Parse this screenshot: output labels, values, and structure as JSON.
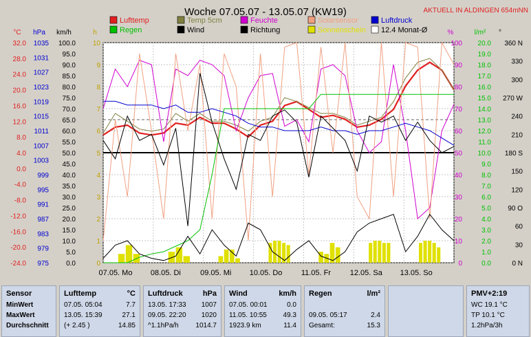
{
  "header": {
    "title": "Woche 07.05.07 - 13.05.07 (KW19)",
    "live_label": "AKTUELL IN ALDINGEN 654mNN"
  },
  "legend": [
    {
      "label": "Lufttemp",
      "color": "#e02020"
    },
    {
      "label": "Temp 5cm",
      "color": "#808040"
    },
    {
      "label": "Feuchte",
      "color": "#d000d0"
    },
    {
      "label": "Solarsensor",
      "color": "#f0a080"
    },
    {
      "label": "Luftdruck",
      "color": "#0000d0"
    },
    {
      "label": "Regen",
      "color": "#00c000"
    },
    {
      "label": "Wind",
      "color": "#000000"
    },
    {
      "label": "Richtung",
      "color": "#000000"
    },
    {
      "label": "Sonnenschein",
      "color": "#e0e000"
    },
    {
      "label": "12.4 Monat-Ø",
      "color": "#ffffff"
    }
  ],
  "axis_headers": {
    "temp": "°C",
    "press": "hPa",
    "wind": "km/h",
    "sun": "h",
    "hum": "%",
    "rain": "l/m²",
    "dir": "°"
  },
  "chart_data": {
    "type": "line",
    "days": [
      "07.05.  Mo",
      "08.05.  Di",
      "09.05.  Mi",
      "10.05.  Do",
      "11.05.  Fr",
      "12.05.  Sa",
      "13.05.  So"
    ],
    "axes": {
      "temp": {
        "ticks": [
          "32.0",
          "28.0",
          "24.0",
          "20.0",
          "16.0",
          "12.0",
          "8.0",
          "4.0",
          "0.0",
          "-4.0",
          "-8.0",
          "-12.0",
          "-16.0",
          "-20.0",
          "-24.0"
        ],
        "range": [
          -24,
          32
        ]
      },
      "press": {
        "ticks": [
          "1035",
          "1031",
          "1027",
          "1023",
          "1019",
          "1015",
          "1011",
          "1007",
          "1003",
          "999",
          "995",
          "991",
          "987",
          "983",
          "979",
          "975"
        ],
        "range": [
          975,
          1035
        ]
      },
      "wind": {
        "ticks": [
          "100.0",
          "95.0",
          "90.0",
          "85.0",
          "80.0",
          "75.0",
          "70.0",
          "65.0",
          "60.0",
          "55.0",
          "50.0",
          "45.0",
          "40.0",
          "35.0",
          "30.0",
          "25.0",
          "20.0",
          "15.0",
          "10.0",
          "5.0",
          "0.0"
        ],
        "range": [
          0,
          100
        ]
      },
      "sun": {
        "ticks": [
          "10",
          "9",
          "8",
          "7",
          "6",
          "5",
          "4",
          "3",
          "2",
          "1",
          "0"
        ],
        "range": [
          0,
          10
        ]
      },
      "hum": {
        "ticks": [
          "100",
          "90",
          "80",
          "70",
          "60",
          "50",
          "40",
          "30",
          "20",
          "10",
          "0"
        ],
        "range": [
          0,
          100
        ]
      },
      "rain": {
        "ticks": [
          "20.0",
          "19.0",
          "18.0",
          "17.0",
          "16.0",
          "15.0",
          "14.0",
          "13.0",
          "12.0",
          "11.0",
          "10.0",
          "9.0",
          "8.0",
          "7.0",
          "6.0",
          "5.0",
          "4.0",
          "3.0",
          "2.0",
          "1.0",
          "0.0"
        ],
        "range": [
          0,
          20
        ]
      },
      "dir": {
        "ticks": [
          "360 N",
          "330",
          "300",
          "270 W",
          "240",
          "210",
          "180 S",
          "150",
          "120",
          "90  O",
          "60",
          "30",
          "0    N"
        ],
        "range": [
          0,
          360
        ]
      }
    },
    "series": [
      {
        "name": "Lufttemp",
        "color": "#e02020",
        "axis": "temp",
        "values": [
          8.5,
          10.5,
          11,
          9,
          8.5,
          9,
          11.5,
          11,
          13,
          11.5,
          11.5,
          10,
          8,
          11,
          12,
          16,
          17,
          15,
          13,
          13.5,
          12.5,
          10.5,
          11,
          12.5,
          15,
          21,
          25,
          27,
          25,
          20
        ]
      },
      {
        "name": "Temp 5cm",
        "color": "#808040",
        "axis": "temp",
        "values": [
          9,
          14,
          12,
          10,
          9.5,
          10,
          14,
          12,
          14,
          12,
          12,
          11,
          9.5,
          12,
          13,
          18,
          17,
          15.5,
          14,
          14,
          13,
          11,
          12,
          13,
          17,
          23,
          27,
          28,
          25,
          20
        ]
      },
      {
        "name": "Feuchte",
        "color": "#d000d0",
        "axis": "hum",
        "values": [
          70,
          88,
          80,
          92,
          90,
          55,
          88,
          85,
          92,
          90,
          85,
          60,
          75,
          85,
          86,
          62,
          65,
          55,
          88,
          90,
          85,
          60,
          50,
          55,
          90,
          60,
          20,
          25,
          60,
          72
        ]
      },
      {
        "name": "Solarsensor",
        "color": "#f0a080",
        "axis": "hum",
        "values": [
          10,
          65,
          30,
          95,
          60,
          20,
          95,
          60,
          90,
          20,
          95,
          80,
          10,
          95,
          30,
          98,
          100,
          40,
          98,
          50,
          100,
          30,
          20,
          100,
          30,
          100,
          98,
          20,
          100,
          90
        ]
      },
      {
        "name": "Luftdruck",
        "color": "#0000d0",
        "axis": "press",
        "values": [
          1019,
          1019,
          1018,
          1018,
          1018,
          1017,
          1018,
          1016,
          1016,
          1017,
          1016,
          1015,
          1013,
          1012,
          1012,
          1011,
          1011,
          1011,
          1012,
          1011,
          1011,
          1010,
          1011,
          1011,
          1012,
          1013,
          1012,
          1011,
          1009,
          1007
        ]
      },
      {
        "name": "Regen",
        "color": "#00c000",
        "axis": "rain",
        "values": [
          0,
          0,
          0,
          0.5,
          0.8,
          1,
          1.5,
          2,
          3,
          8,
          14,
          14,
          14,
          14,
          14,
          14,
          14,
          14,
          15.3,
          15.3,
          15.3,
          15.3,
          15.3,
          15.3,
          15.3,
          15.3,
          15.3,
          15.3,
          15.3,
          15.3
        ]
      },
      {
        "name": "Wind",
        "color": "#000000",
        "axis": "wind",
        "values": [
          2,
          8,
          10,
          4,
          2,
          1,
          3,
          12,
          4,
          15,
          8,
          3,
          18,
          15,
          5,
          1,
          6,
          10,
          3,
          1,
          5,
          14,
          18,
          20,
          22,
          5,
          12,
          22,
          15,
          10
        ]
      },
      {
        "name": "Richtung",
        "color": "#000000",
        "axis": "dir",
        "values": [
          200,
          170,
          240,
          200,
          210,
          160,
          220,
          60,
          310,
          230,
          170,
          120,
          210,
          200,
          240,
          250,
          230,
          140,
          240,
          220,
          200,
          150,
          240,
          230,
          240,
          200,
          230,
          200,
          180,
          190
        ]
      }
    ],
    "sunshine_axis": "sun",
    "sunshine_days": [
      {
        "day": 0,
        "values": [
          0.4,
          0.8,
          0.4
        ]
      },
      {
        "day": 1,
        "values": [
          0.5,
          0.7,
          0.3
        ]
      },
      {
        "day": 2,
        "values": [
          0.3,
          0.6,
          0.6,
          0.2
        ]
      },
      {
        "day": 3,
        "values": [
          0.9,
          1.0,
          1.0,
          0.9,
          0.8
        ]
      },
      {
        "day": 4,
        "values": [
          0.5,
          0.4,
          0.9,
          0.7
        ]
      },
      {
        "day": 5,
        "values": [
          0.9,
          1.0,
          1.0,
          0.9,
          0.9
        ]
      },
      {
        "day": 6,
        "values": [
          0.9,
          1.0,
          1.0,
          0.9,
          0.7
        ]
      }
    ],
    "month_avg": {
      "label": "12.4 Monat-Ø",
      "value": 12.4,
      "axis": "temp"
    },
    "reference_line": {
      "value": 4.0,
      "axis": "temp"
    }
  },
  "table": {
    "sensor": {
      "header": "Sensor",
      "rows": [
        "MinWert",
        "MaxWert",
        "Durchschnitt"
      ]
    },
    "lufttemp": {
      "header": "Lufttemp",
      "unit": "°C",
      "rows": [
        [
          "07.05.  05:04",
          "7.7"
        ],
        [
          "13.05.  15:39",
          "27.1"
        ],
        [
          "(+ 2.45 )",
          "14.85"
        ]
      ]
    },
    "luftdruck": {
      "header": "Luftdruck",
      "unit": "hPa",
      "rows": [
        [
          "13.05.  17:33",
          "1007"
        ],
        [
          "09.05.  22:20",
          "1020"
        ],
        [
          "^1.1hPa/h",
          "1014.7"
        ]
      ]
    },
    "wind": {
      "header": "Wind",
      "unit": "km/h",
      "rows": [
        [
          "07.05.  00:01",
          "0.0"
        ],
        [
          "11.05.  10:55",
          "49.3"
        ],
        [
          "1923.9 km",
          "11.4"
        ]
      ]
    },
    "regen": {
      "header": "Regen",
      "unit": "l/m²",
      "rows": [
        [
          "",
          ""
        ],
        [
          "09.05.  05:17",
          "2.4"
        ],
        [
          "Gesamt:",
          "15.3"
        ]
      ]
    },
    "pmv": {
      "header": "PMV+2:19",
      "rows": [
        "WC 19.1 °C",
        "TP 10.1 °C",
        "1.2hPa/3h"
      ]
    }
  }
}
